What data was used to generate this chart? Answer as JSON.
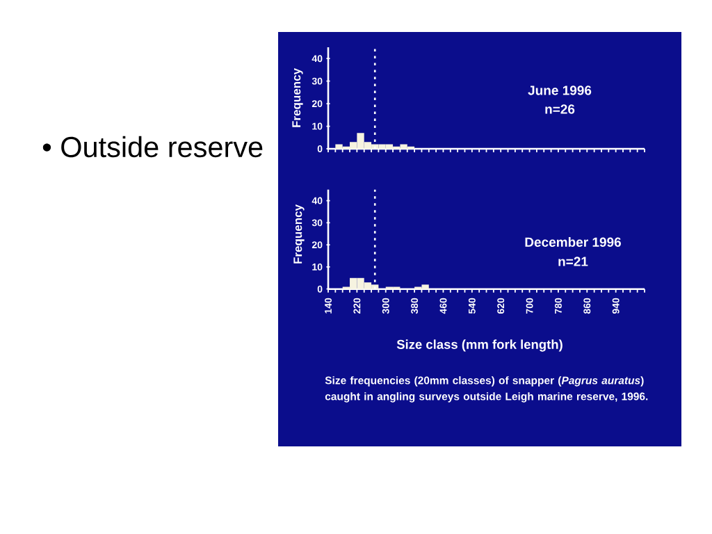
{
  "chart_data": [
    {
      "type": "histogram",
      "bins": [
        140,
        160,
        180,
        200,
        220,
        240,
        260,
        280,
        300,
        320,
        340,
        360,
        380,
        400,
        420
      ],
      "values": [
        0,
        2,
        1,
        3,
        7,
        3,
        2,
        2,
        2,
        1,
        2,
        1,
        0,
        0
      ],
      "color": "#f6f3e0",
      "xlim": [
        140,
        1020
      ],
      "ylim": [
        0,
        45
      ],
      "xticks": [
        140,
        {
          "value": 160,
          "label": null
        },
        {
          "value": 180,
          "label": null
        },
        {
          "value": 200,
          "label": null
        },
        220,
        {
          "value": 240,
          "label": null
        },
        {
          "value": 260,
          "label": null
        },
        {
          "value": 280,
          "label": null
        },
        300,
        {
          "value": 320,
          "label": null
        },
        {
          "value": 340,
          "label": null
        },
        {
          "value": 360,
          "label": null
        },
        380,
        {
          "value": 400,
          "label": null
        },
        {
          "value": 420,
          "label": null
        },
        {
          "value": 440,
          "label": null
        },
        460,
        {
          "value": 480,
          "label": null
        },
        {
          "value": 500,
          "label": null
        },
        {
          "value": 520,
          "label": null
        },
        540,
        {
          "value": 560,
          "label": null
        },
        {
          "value": 580,
          "label": null
        },
        {
          "value": 600,
          "label": null
        },
        620,
        {
          "value": 640,
          "label": null
        },
        {
          "value": 660,
          "label": null
        },
        {
          "value": 680,
          "label": null
        },
        700,
        {
          "value": 720,
          "label": null
        },
        {
          "value": 740,
          "label": null
        },
        {
          "value": 760,
          "label": null
        },
        780,
        {
          "value": 800,
          "label": null
        },
        {
          "value": 820,
          "label": null
        },
        {
          "value": 840,
          "label": null
        },
        860,
        {
          "value": 880,
          "label": null
        },
        {
          "value": 900,
          "label": null
        },
        {
          "value": 920,
          "label": null
        },
        940,
        {
          "value": 960,
          "label": null
        },
        {
          "value": 980,
          "label": null
        },
        {
          "value": 1000,
          "label": null
        },
        {
          "value": 1020,
          "label": null
        }
      ],
      "yticks": [
        0,
        10,
        20,
        30,
        40
      ],
      "ylabel": "Frequency",
      "tick_labels": "y",
      "ref_lines": [
        {
          "axis": "x",
          "value": 270,
          "color": "#ffffff",
          "line_style": "dotted"
        }
      ],
      "annotations": [
        "June 1996",
        "n=26",
        "• Outside reserve"
      ]
    },
    {
      "type": "histogram",
      "bins": [
        140,
        160,
        180,
        200,
        220,
        240,
        260,
        280,
        300,
        320,
        340,
        360,
        380,
        400,
        420
      ],
      "values": [
        0,
        0,
        1,
        5,
        5,
        3,
        2,
        0,
        1,
        1,
        0,
        0,
        1,
        2
      ],
      "color": "#f6f3e0",
      "xlim": [
        140,
        1020
      ],
      "ylim": [
        0,
        45
      ],
      "xticks": [
        140,
        {
          "value": 160,
          "label": null
        },
        {
          "value": 180,
          "label": null
        },
        {
          "value": 200,
          "label": null
        },
        220,
        {
          "value": 240,
          "label": null
        },
        {
          "value": 260,
          "label": null
        },
        {
          "value": 280,
          "label": null
        },
        300,
        {
          "value": 320,
          "label": null
        },
        {
          "value": 340,
          "label": null
        },
        {
          "value": 360,
          "label": null
        },
        380,
        {
          "value": 400,
          "label": null
        },
        {
          "value": 420,
          "label": null
        },
        {
          "value": 440,
          "label": null
        },
        460,
        {
          "value": 480,
          "label": null
        },
        {
          "value": 500,
          "label": null
        },
        {
          "value": 520,
          "label": null
        },
        540,
        {
          "value": 560,
          "label": null
        },
        {
          "value": 580,
          "label": null
        },
        {
          "value": 600,
          "label": null
        },
        620,
        {
          "value": 640,
          "label": null
        },
        {
          "value": 660,
          "label": null
        },
        {
          "value": 680,
          "label": null
        },
        700,
        {
          "value": 720,
          "label": null
        },
        {
          "value": 740,
          "label": null
        },
        {
          "value": 760,
          "label": null
        },
        780,
        {
          "value": 800,
          "label": null
        },
        {
          "value": 820,
          "label": null
        },
        {
          "value": 840,
          "label": null
        },
        860,
        {
          "value": 880,
          "label": null
        },
        {
          "value": 900,
          "label": null
        },
        {
          "value": 920,
          "label": null
        },
        940,
        {
          "value": 960,
          "label": null
        },
        {
          "value": 980,
          "label": null
        },
        {
          "value": 1000,
          "label": null
        },
        {
          "value": 1020,
          "label": null
        }
      ],
      "yticks": [
        0,
        10,
        20,
        30,
        40
      ],
      "ylabel": "Frequency",
      "xlabel": "Size class (mm fork length)",
      "ref_lines": [
        {
          "axis": "x",
          "value": 270,
          "color": "#ffffff",
          "line_style": "dotted"
        }
      ],
      "annotations": [
        "December 1996",
        "n=21",
        "Size frequencies (20mm classes) of snapper (*Pagrus auratus*) caught in angling surveys outside Leigh marine reserve, 1996."
      ]
    }
  ]
}
